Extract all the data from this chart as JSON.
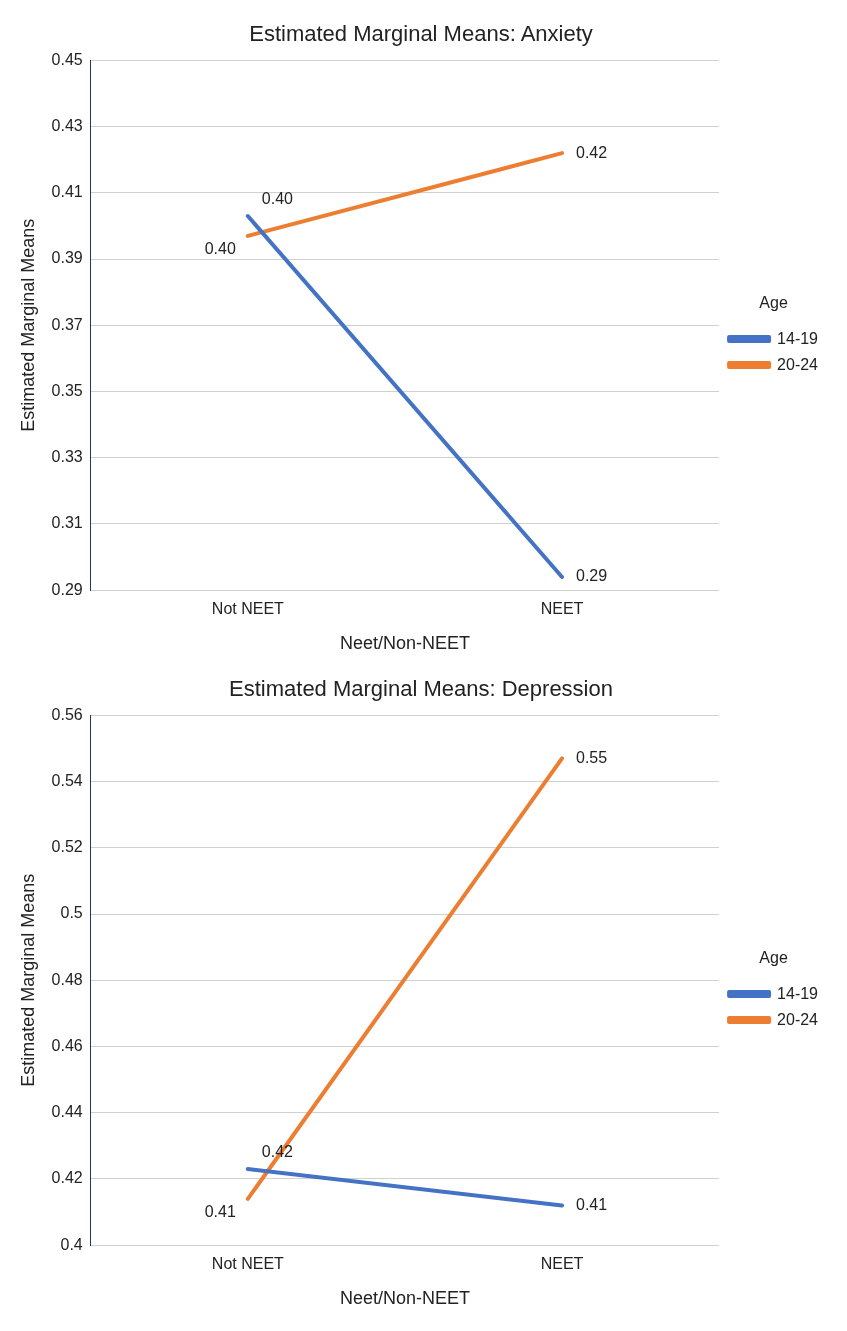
{
  "chart_data": [
    {
      "type": "line",
      "title": "Estimated Marginal Means: Anxiety",
      "xlabel": "Neet/Non-NEET",
      "ylabel": "Estimated Marginal Means",
      "legend_title": "Age",
      "categories": [
        "Not NEET",
        "NEET"
      ],
      "ylim": [
        0.29,
        0.45
      ],
      "yticks": [
        0.29,
        0.31,
        0.33,
        0.35,
        0.37,
        0.39,
        0.41,
        0.43,
        0.45
      ],
      "grid": "y",
      "legend": "right",
      "marker": "none",
      "line_style": "solid",
      "series": [
        {
          "name": "14-19",
          "color": "#4472c4",
          "values": [
            0.403,
            0.294
          ],
          "value_labels": [
            "0.40",
            "0.29"
          ]
        },
        {
          "name": "20-24",
          "color": "#ed7d31",
          "values": [
            0.397,
            0.422
          ],
          "value_labels": [
            "0.40",
            "0.42"
          ]
        }
      ]
    },
    {
      "type": "line",
      "title": "Estimated Marginal Means: Depression",
      "xlabel": "Neet/Non-NEET",
      "ylabel": "Estimated Marginal Means",
      "legend_title": "Age",
      "categories": [
        "Not NEET",
        "NEET"
      ],
      "ylim": [
        0.4,
        0.56
      ],
      "yticks": [
        0.4,
        0.42,
        0.44,
        0.46,
        0.48,
        0.5,
        0.52,
        0.54,
        0.56
      ],
      "grid": "y",
      "legend": "right",
      "marker": "none",
      "line_style": "solid",
      "series": [
        {
          "name": "14-19",
          "color": "#4472c4",
          "values": [
            0.423,
            0.412
          ],
          "value_labels": [
            "0.42",
            "0.41"
          ]
        },
        {
          "name": "20-24",
          "color": "#ed7d31",
          "values": [
            0.414,
            0.547
          ],
          "value_labels": [
            "0.41",
            "0.55"
          ]
        }
      ]
    }
  ]
}
